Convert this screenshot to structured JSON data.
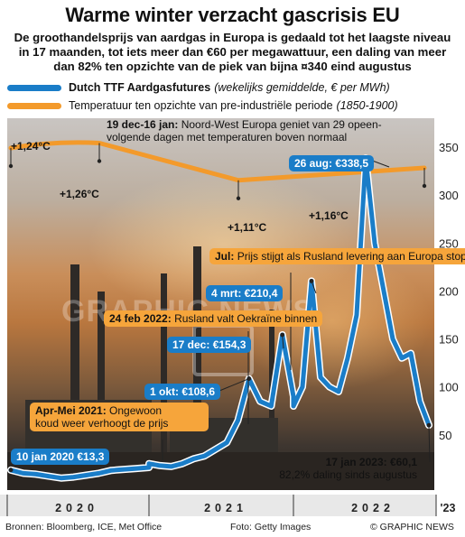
{
  "title": "Warme winter verzacht gascrisis EU",
  "subtitle": "De groothandelsprijs van aardgas in Europa is gedaald tot het laagste niveau in 17 maanden, tot iets meer dan €60 per megawattuur, een daling van meer dan 82% ten opzichte van de piek van bijna ¤340 eind augustus",
  "legend": {
    "gas_name": "Dutch TTF Aardgasfutures",
    "gas_note": "(wekelijks gemiddelde, € per MWh)",
    "temp_name": "Temperatuur ten opzichte van pre-industriële periode",
    "temp_note": "(1850-1900)"
  },
  "colors": {
    "gas": "#1a7dc8",
    "temp": "#f39a2b",
    "box_blue": "#1a7dc8",
    "box_orange": "#f6a53b"
  },
  "annotations": {
    "dec_jan_head": "19 dec-16 jan:",
    "dec_jan_text": "Noord-West Europa geniet van 29 opeen-volgende dagen met temperaturen boven normaal",
    "peak": "26 aug: €338,5",
    "jul_head": "Jul:",
    "jul_text": "Prijs stijgt als Rusland levering aan Europa stopzet",
    "mar": "4 mrt: €210,4",
    "feb_head": "24 feb 2022:",
    "feb_text": "Rusland valt Oekraïne binnen",
    "dec": "17 dec: €154,3",
    "oct": "1 okt: €108,6",
    "aprmay_head": "Apr-Mei 2021:",
    "aprmay_text1": "Ongewoon",
    "aprmay_text2": "koud weer verhoogt de prijs",
    "jan2020": "10 jan 2020 €13,3",
    "jan2023_head": "17 jan 2023: €60,1",
    "jan2023_text": "82,2% daling sinds augustus"
  },
  "temp_labels": [
    "+1,24°C",
    "+1,26°C",
    "+1,11°C",
    "+1,16°C"
  ],
  "watermark": "GRAPHIC NEWS",
  "footer": {
    "sources": "Bronnen: Bloomberg, ICE, Met Office",
    "photo": "Foto: Getty Images",
    "credit": "© GRAPHIC NEWS"
  },
  "chart_data": {
    "type": "line",
    "title": "Warme winter verzacht gascrisis EU",
    "ylim": [
      0,
      350
    ],
    "y_ticks": [
      "50",
      "100",
      "150",
      "200",
      "250",
      "300",
      "350"
    ],
    "x_labels": [
      "2020",
      "2021",
      "2022",
      "'23"
    ],
    "series": [
      {
        "name": "Dutch TTF Aardgasfutures",
        "x": [
          "2020-01",
          "2020-02",
          "2020-03",
          "2020-04",
          "2020-05",
          "2020-06",
          "2020-07",
          "2020-08",
          "2020-09",
          "2020-10",
          "2020-11",
          "2020-12",
          "2021-01",
          "2021-02",
          "2021-03",
          "2021-04",
          "2021-05",
          "2021-06",
          "2021-07",
          "2021-08",
          "2021-09",
          "2021-10a",
          "2021-10b",
          "2021-11",
          "2021-12a",
          "2021-12b",
          "2022-01",
          "2022-02",
          "2022-03a",
          "2022-03b",
          "2022-04",
          "2022-05",
          "2022-06",
          "2022-07",
          "2022-08a",
          "2022-08b",
          "2022-09",
          "2022-10",
          "2022-11",
          "2022-12a",
          "2022-12b",
          "2023-01"
        ],
        "values": [
          13.3,
          10,
          9,
          7,
          5,
          6,
          8,
          10,
          13,
          14,
          15,
          16,
          20,
          18,
          17,
          20,
          25,
          28,
          35,
          42,
          65,
          108.6,
          85,
          80,
          154.3,
          90,
          80,
          100,
          210.4,
          110,
          100,
          95,
          130,
          175,
          338.5,
          250,
          200,
          150,
          130,
          135,
          85,
          60.1
        ]
      },
      {
        "name": "Temperatuur ten opzichte van pre-industriële periode",
        "x": [
          "2019",
          "2020",
          "2021",
          "2022"
        ],
        "values": [
          1.24,
          1.26,
          1.11,
          1.16
        ]
      }
    ]
  }
}
